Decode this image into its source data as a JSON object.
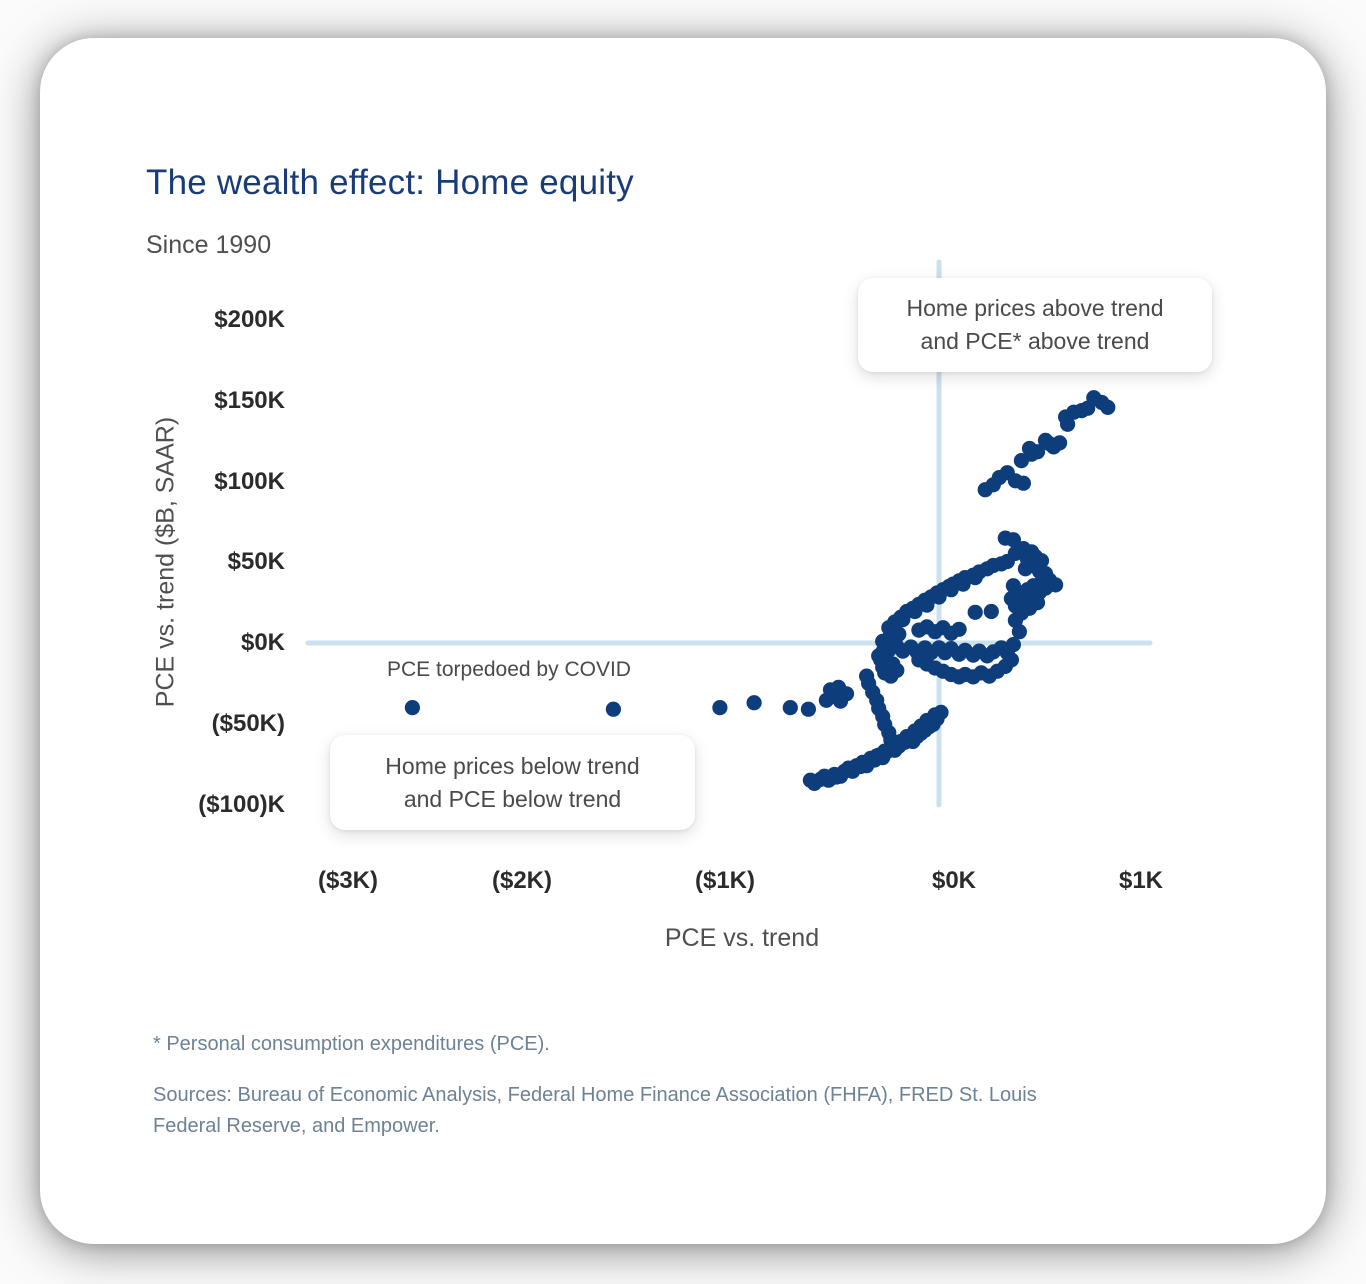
{
  "header": {
    "title": "The wealth effect: Home equity",
    "subtitle": "Since 1990"
  },
  "chart_data": {
    "type": "scatter",
    "title": "The wealth effect: Home equity",
    "subtitle": "Since 1990",
    "xlabel": "PCE vs. trend",
    "ylabel": "PCE vs. trend ($B, SAAR)",
    "xlim": [
      -3.3,
      1.2
    ],
    "ylim": [
      -110,
      215
    ],
    "grid": false,
    "legend": "none",
    "x_ticks": [
      {
        "value": -3,
        "label": "($3K)"
      },
      {
        "value": -2,
        "label": "($2K)"
      },
      {
        "value": -1,
        "label": "($1K)"
      },
      {
        "value": 0,
        "label": "$0K"
      },
      {
        "value": 1,
        "label": "$1K"
      }
    ],
    "y_ticks": [
      {
        "value": 200,
        "label": "$200K"
      },
      {
        "value": 150,
        "label": "$150K"
      },
      {
        "value": 100,
        "label": "$100K"
      },
      {
        "value": 50,
        "label": "$50K"
      },
      {
        "value": 0,
        "label": "$0K"
      },
      {
        "value": -50,
        "label": "($50K)"
      },
      {
        "value": -100,
        "label": "($100)K"
      }
    ],
    "colors": {
      "point": "#0e3d7b",
      "crosshair": "#cbe1ee",
      "title": "#193c78"
    },
    "annotations": [
      {
        "id": "above-quadrant",
        "line1": "Home prices above trend",
        "line2": "and PCE* above trend"
      },
      {
        "id": "below-quadrant",
        "line1": "Home prices below trend",
        "line2": "and PCE below trend"
      },
      {
        "id": "covid",
        "text": "PCE torpedoed by COVID"
      }
    ],
    "series": [
      {
        "name": "Monthly observations since 1990",
        "points": [
          [
            -0.64,
            -85
          ],
          [
            -0.62,
            -87
          ],
          [
            -0.59,
            -84.5
          ],
          [
            -0.57,
            -82.5
          ],
          [
            -0.54,
            -84
          ],
          [
            -0.52,
            -81.5
          ],
          [
            -0.49,
            -82.5
          ],
          [
            -0.47,
            -79.5
          ],
          [
            -0.45,
            -77.5
          ],
          [
            -0.43,
            -79.5
          ],
          [
            -0.41,
            -76
          ],
          [
            -0.38,
            -74
          ],
          [
            -0.36,
            -76
          ],
          [
            -0.34,
            -71.5
          ],
          [
            -0.32,
            -72.5
          ],
          [
            -0.3,
            -69.5
          ],
          [
            -0.28,
            -71
          ],
          [
            -0.26,
            -67.5
          ],
          [
            -0.24,
            -65
          ],
          [
            -0.22,
            -66.5
          ],
          [
            -0.2,
            -64
          ],
          [
            -0.17,
            -61.5
          ],
          [
            -0.15,
            -59.5
          ],
          [
            -0.13,
            -61
          ],
          [
            -0.11,
            -58
          ],
          [
            -0.09,
            -56
          ],
          [
            -0.07,
            -54
          ],
          [
            -0.05,
            -52
          ],
          [
            -0.03,
            -50.5
          ],
          [
            -0.01,
            -47
          ],
          [
            0.01,
            -43
          ],
          [
            -0.02,
            -44.5
          ],
          [
            -0.06,
            -48
          ],
          [
            -0.09,
            -51.5
          ],
          [
            -0.12,
            -54.5
          ],
          [
            -0.16,
            -58
          ],
          [
            -0.19,
            -61
          ],
          [
            -0.23,
            -64
          ],
          [
            -0.27,
            -67
          ],
          [
            -0.31,
            -70
          ],
          [
            -0.35,
            -73.5
          ],
          [
            -0.39,
            -76.5
          ],
          [
            -0.43,
            -79
          ],
          [
            -0.51,
            -83
          ],
          [
            -0.55,
            -85
          ],
          [
            -0.36,
            -20.5
          ],
          [
            -0.35,
            -25
          ],
          [
            -0.33,
            -30.5
          ],
          [
            -0.31,
            -35.5
          ],
          [
            -0.3,
            -40.5
          ],
          [
            -0.28,
            -45.5
          ],
          [
            -0.27,
            -50.5
          ],
          [
            -0.25,
            -55.5
          ],
          [
            -0.24,
            -60
          ],
          [
            -0.54,
            -29
          ],
          [
            -0.5,
            -27.5
          ],
          [
            -0.46,
            -31.5
          ],
          [
            -0.56,
            -35.5
          ],
          [
            -0.49,
            -36
          ],
          [
            -0.52,
            -33
          ],
          [
            -0.29,
            -10.5
          ],
          [
            -0.28,
            -5.5
          ],
          [
            -0.26,
            -1
          ],
          [
            -0.25,
            3
          ],
          [
            -0.22,
            6.5
          ],
          [
            -0.28,
            -15
          ],
          [
            -0.27,
            -18.5
          ],
          [
            -0.24,
            -20.5
          ],
          [
            -0.21,
            -17
          ],
          [
            -0.23,
            -13
          ],
          [
            -0.3,
            -8
          ],
          [
            -0.26,
            -12.5
          ],
          [
            -0.25,
            9.5
          ],
          [
            -0.22,
            13
          ],
          [
            -0.19,
            16
          ],
          [
            -0.16,
            19.5
          ],
          [
            -0.13,
            21.5
          ],
          [
            -0.1,
            24
          ],
          [
            -0.07,
            26.5
          ],
          [
            -0.04,
            28.5
          ],
          [
            -0.01,
            31
          ],
          [
            0.02,
            33
          ],
          [
            0.05,
            35
          ],
          [
            0.07,
            36.5
          ],
          [
            0.1,
            38.5
          ],
          [
            0.13,
            40.5
          ],
          [
            0.17,
            42
          ],
          [
            0.2,
            44
          ],
          [
            0.24,
            46
          ],
          [
            0.27,
            48
          ],
          [
            0.31,
            49
          ],
          [
            0.34,
            50.5
          ],
          [
            -0.18,
            14.5
          ],
          [
            -0.12,
            19.5
          ],
          [
            -0.06,
            23.5
          ],
          [
            0,
            28.5
          ],
          [
            0.06,
            33
          ],
          [
            0.12,
            36.5
          ],
          [
            0.18,
            40.5
          ],
          [
            -0.1,
            8
          ],
          [
            -0.06,
            10
          ],
          [
            -0.02,
            7
          ],
          [
            0.02,
            9.5
          ],
          [
            0.06,
            6
          ],
          [
            0.1,
            8.5
          ],
          [
            -0.28,
            1
          ],
          [
            -0.24,
            3
          ],
          [
            -0.2,
            5.5
          ],
          [
            0.18,
            19
          ],
          [
            0.26,
            19.5
          ],
          [
            0.38,
            55.5
          ],
          [
            0.42,
            58.5
          ],
          [
            0.46,
            56.5
          ],
          [
            0.44,
            52
          ],
          [
            0.48,
            53.5
          ],
          [
            0.51,
            51
          ],
          [
            0.47,
            48
          ],
          [
            0.43,
            46
          ],
          [
            0.5,
            44.5
          ],
          [
            0.53,
            43
          ],
          [
            0.55,
            39
          ],
          [
            0.51,
            37.5
          ],
          [
            0.47,
            35.5
          ],
          [
            0.44,
            33
          ],
          [
            0.5,
            31.5
          ],
          [
            0.53,
            34
          ],
          [
            0.46,
            28.5
          ],
          [
            0.42,
            26
          ],
          [
            0.49,
            25
          ],
          [
            0.45,
            21.5
          ],
          [
            0.41,
            18.5
          ],
          [
            0.38,
            23
          ],
          [
            0.36,
            27.5
          ],
          [
            0.4,
            31
          ],
          [
            0.37,
            35.5
          ],
          [
            0.58,
            36
          ],
          [
            0.38,
            14
          ],
          [
            0.4,
            7
          ],
          [
            0.37,
            -1
          ],
          [
            0.33,
            65
          ],
          [
            0.37,
            64
          ],
          [
            -0.1,
            -10.5
          ],
          [
            -0.06,
            -13
          ],
          [
            -0.02,
            -15.5
          ],
          [
            0.02,
            -17.5
          ],
          [
            0.06,
            -19.5
          ],
          [
            0.1,
            -21
          ],
          [
            0.13,
            -19.5
          ],
          [
            0.17,
            -21
          ],
          [
            0.21,
            -18.5
          ],
          [
            0.25,
            -20.5
          ],
          [
            0.29,
            -17.5
          ],
          [
            0.33,
            -14.5
          ],
          [
            0.36,
            -10.5
          ],
          [
            0.34,
            -6
          ],
          [
            0.31,
            -3
          ],
          [
            0.27,
            -5.5
          ],
          [
            0.24,
            -8
          ],
          [
            0.2,
            -5
          ],
          [
            0.17,
            -7.5
          ],
          [
            0.13,
            -4.5
          ],
          [
            0.1,
            -7
          ],
          [
            0.06,
            -3.5
          ],
          [
            0.03,
            -6
          ],
          [
            0,
            -3
          ],
          [
            -0.04,
            -6
          ],
          [
            -0.07,
            -3
          ],
          [
            -0.11,
            -5.5
          ],
          [
            -0.14,
            -2.5
          ],
          [
            -0.18,
            -5
          ],
          [
            -0.21,
            -2
          ],
          [
            -0.25,
            -4.5
          ],
          [
            0.23,
            95
          ],
          [
            0.27,
            98
          ],
          [
            0.3,
            102.5
          ],
          [
            0.34,
            105.5
          ],
          [
            0.38,
            100.5
          ],
          [
            0.42,
            99
          ],
          [
            0.41,
            113
          ],
          [
            0.45,
            120.5
          ],
          [
            0.49,
            118.5
          ],
          [
            0.53,
            125.5
          ],
          [
            0.57,
            121.5
          ],
          [
            0.6,
            124
          ],
          [
            0.64,
            135.5
          ],
          [
            0.63,
            140
          ],
          [
            0.67,
            143
          ],
          [
            0.71,
            144
          ],
          [
            0.74,
            145.5
          ],
          [
            0.77,
            152
          ],
          [
            0.81,
            149
          ],
          [
            0.84,
            146
          ],
          [
            0.46,
            117
          ],
          [
            0.55,
            123.5
          ]
        ]
      },
      {
        "name": "COVID outliers",
        "points": [
          [
            -2.62,
            -40
          ],
          [
            -1.62,
            -41
          ],
          [
            -1.09,
            -40
          ],
          [
            -0.92,
            -37
          ],
          [
            -0.74,
            -40
          ],
          [
            -0.65,
            -41
          ]
        ]
      }
    ]
  },
  "footnotes": {
    "asterisk": "* Personal consumption expenditures (PCE).",
    "sources_line1": "Sources: Bureau of Economic Analysis, Federal Home Finance Association (FHFA), FRED St. Louis",
    "sources_line2": "Federal Reserve, and Empower."
  }
}
